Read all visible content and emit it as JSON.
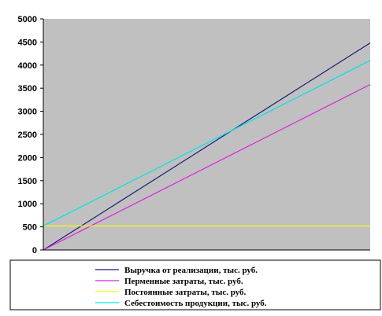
{
  "chart_data": {
    "type": "line",
    "title": "",
    "xlabel": "",
    "ylabel": "",
    "ylim": [
      0,
      5000
    ],
    "xlim": [
      0,
      1
    ],
    "yticks": [
      0,
      500,
      1000,
      1500,
      2000,
      2500,
      3000,
      3500,
      4000,
      4500,
      5000
    ],
    "grid": false,
    "legend_position": "bottom",
    "plot_background": "#c0c0c0",
    "series": [
      {
        "name": "Выручка от реализации, тыс. руб.",
        "color": "#1a1a7a",
        "x": [
          0,
          1
        ],
        "y": [
          0,
          4480
        ]
      },
      {
        "name": "Перменные затраты, тыс. руб.",
        "color": "#e020e0",
        "x": [
          0,
          1
        ],
        "y": [
          0,
          3580
        ]
      },
      {
        "name": "Постоянные затраты, тыс. руб.",
        "color": "#ffff00",
        "x": [
          0,
          1
        ],
        "y": [
          520,
          520
        ]
      },
      {
        "name": "Себестоимость продукции, тыс. руб.",
        "color": "#00e5e5",
        "x": [
          0,
          1
        ],
        "y": [
          520,
          4100
        ]
      }
    ]
  }
}
